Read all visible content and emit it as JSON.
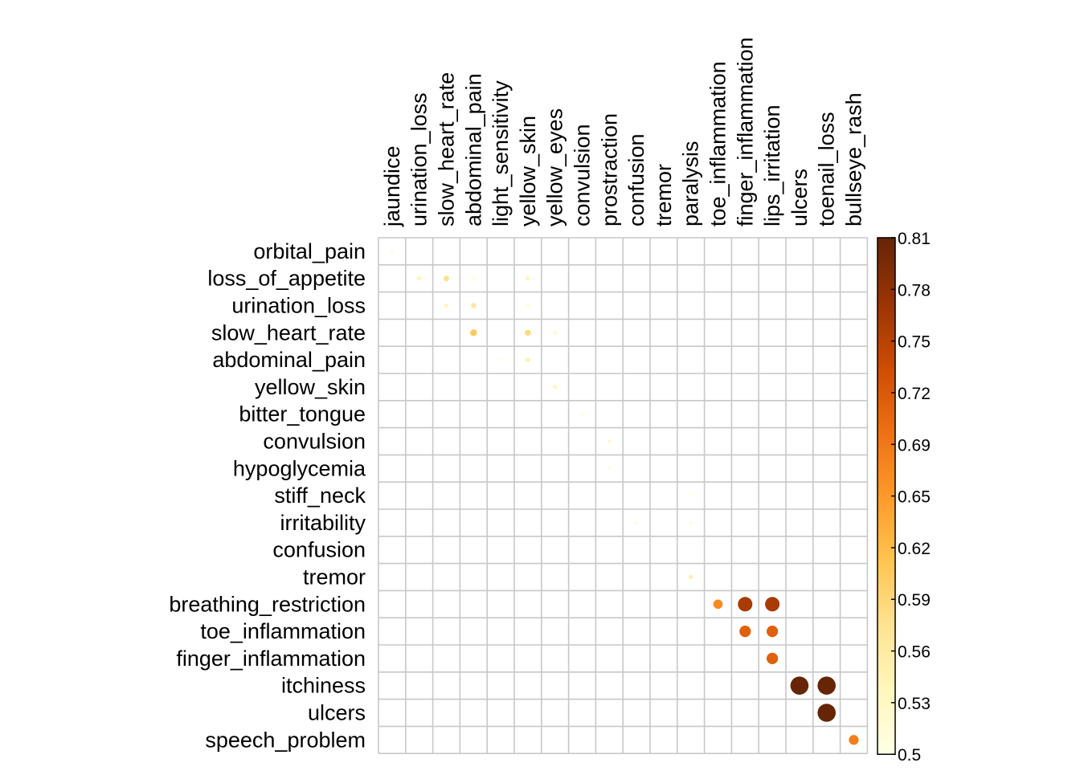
{
  "chart_data": {
    "type": "heatmap",
    "subtype": "correlation-circle-plot",
    "title": "",
    "xlabel": "",
    "ylabel": "",
    "rows": [
      "orbital_pain",
      "loss_of_appetite",
      "urination_loss",
      "slow_heart_rate",
      "abdominal_pain",
      "yellow_skin",
      "bitter_tongue",
      "convulsion",
      "hypoglycemia",
      "stiff_neck",
      "irritability",
      "confusion",
      "tremor",
      "breathing_restriction",
      "toe_inflammation",
      "finger_inflammation",
      "itchiness",
      "ulcers",
      "speech_problem"
    ],
    "columns": [
      "jaundice",
      "urination_loss",
      "slow_heart_rate",
      "abdominal_pain",
      "light_sensitivity",
      "yellow_skin",
      "yellow_eyes",
      "convulsion",
      "prostraction",
      "confusion",
      "tremor",
      "paralysis",
      "toe_inflammation",
      "finger_inflammation",
      "lips_irritation",
      "ulcers",
      "toenail_loss",
      "bullseye_rash"
    ],
    "cells": [
      {
        "row": "orbital_pain",
        "col": "jaundice",
        "value": 0.51
      },
      {
        "row": "loss_of_appetite",
        "col": "urination_loss",
        "value": 0.54
      },
      {
        "row": "loss_of_appetite",
        "col": "slow_heart_rate",
        "value": 0.58
      },
      {
        "row": "loss_of_appetite",
        "col": "abdominal_pain",
        "value": 0.51
      },
      {
        "row": "loss_of_appetite",
        "col": "yellow_skin",
        "value": 0.54
      },
      {
        "row": "urination_loss",
        "col": "slow_heart_rate",
        "value": 0.54
      },
      {
        "row": "urination_loss",
        "col": "abdominal_pain",
        "value": 0.57
      },
      {
        "row": "urination_loss",
        "col": "yellow_skin",
        "value": 0.51
      },
      {
        "row": "slow_heart_rate",
        "col": "abdominal_pain",
        "value": 0.61
      },
      {
        "row": "slow_heart_rate",
        "col": "yellow_skin",
        "value": 0.59
      },
      {
        "row": "slow_heart_rate",
        "col": "yellow_eyes",
        "value": 0.53
      },
      {
        "row": "abdominal_pain",
        "col": "light_sensitivity",
        "value": 0.505
      },
      {
        "row": "abdominal_pain",
        "col": "yellow_skin",
        "value": 0.55
      },
      {
        "row": "yellow_skin",
        "col": "yellow_eyes",
        "value": 0.54
      },
      {
        "row": "bitter_tongue",
        "col": "convulsion",
        "value": 0.503
      },
      {
        "row": "convulsion",
        "col": "prostraction",
        "value": 0.52
      },
      {
        "row": "hypoglycemia",
        "col": "prostraction",
        "value": 0.51
      },
      {
        "row": "stiff_neck",
        "col": "paralysis",
        "value": 0.503
      },
      {
        "row": "irritability",
        "col": "confusion",
        "value": 0.51
      },
      {
        "row": "irritability",
        "col": "paralysis",
        "value": 0.51
      },
      {
        "row": "tremor",
        "col": "paralysis",
        "value": 0.55
      },
      {
        "row": "breathing_restriction",
        "col": "toe_inflammation",
        "value": 0.67
      },
      {
        "row": "breathing_restriction",
        "col": "finger_inflammation",
        "value": 0.76
      },
      {
        "row": "breathing_restriction",
        "col": "lips_irritation",
        "value": 0.76
      },
      {
        "row": "toe_inflammation",
        "col": "finger_inflammation",
        "value": 0.71
      },
      {
        "row": "toe_inflammation",
        "col": "lips_irritation",
        "value": 0.71
      },
      {
        "row": "finger_inflammation",
        "col": "lips_irritation",
        "value": 0.71
      },
      {
        "row": "itchiness",
        "col": "ulcers",
        "value": 0.81
      },
      {
        "row": "itchiness",
        "col": "toenail_loss",
        "value": 0.81
      },
      {
        "row": "ulcers",
        "col": "toenail_loss",
        "value": 0.81
      },
      {
        "row": "speech_problem",
        "col": "bullseye_rash",
        "value": 0.68
      }
    ],
    "colorbar": {
      "min": 0.5,
      "max": 0.81,
      "tick_labels": [
        "0.5",
        "0.53",
        "0.56",
        "0.59",
        "0.62",
        "0.65",
        "0.69",
        "0.72",
        "0.75",
        "0.78",
        "0.81"
      ],
      "colors": [
        "#FFFFE5",
        "#FFF7BC",
        "#FEE391",
        "#FEC44F",
        "#FE9929",
        "#EC7014",
        "#CC4C02",
        "#993404",
        "#662506"
      ]
    },
    "grid": true,
    "legend": "right",
    "grid_color": "#C8C8C8"
  }
}
